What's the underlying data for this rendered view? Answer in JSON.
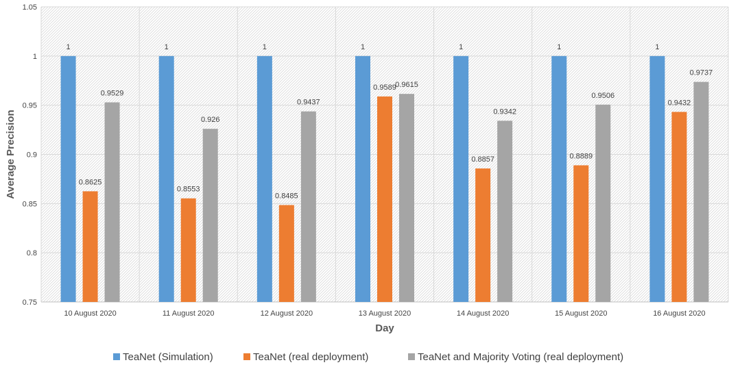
{
  "chart_data": {
    "type": "bar",
    "title": "",
    "xlabel": "Day",
    "ylabel": "Average Precision",
    "ylim": [
      0.75,
      1.05
    ],
    "yticks": [
      "0.75",
      "0.8",
      "0.85",
      "0.9",
      "0.95",
      "1",
      "1.05"
    ],
    "grid": true,
    "legend_position": "bottom",
    "categories": [
      "10 August 2020",
      "11 August 2020",
      "12 August 2020",
      "13 August 2020",
      "14 August 2020",
      "15 August 2020",
      "16 August 2020"
    ],
    "series": [
      {
        "name": "TeaNet (Simulation)",
        "color": "#5B9BD5",
        "values": [
          1,
          1,
          1,
          1,
          1,
          1,
          1
        ],
        "labels": [
          "1",
          "1",
          "1",
          "1",
          "1",
          "1",
          "1"
        ]
      },
      {
        "name": "TeaNet (real deployment)",
        "color": "#ED7D31",
        "values": [
          0.8625,
          0.8553,
          0.8485,
          0.9589,
          0.8857,
          0.8889,
          0.9432
        ],
        "labels": [
          "0.8625",
          "0.8553",
          "0.8485",
          "0.9589",
          "0.8857",
          "0.8889",
          "0.9432"
        ]
      },
      {
        "name": "TeaNet and Majority Voting (real deployment)",
        "color": "#A5A5A5",
        "values": [
          0.9529,
          0.926,
          0.9437,
          0.9615,
          0.9342,
          0.9506,
          0.9737
        ],
        "labels": [
          "0.9529",
          "0.926",
          "0.9437",
          "0.9615",
          "0.9342",
          "0.9506",
          "0.9737"
        ]
      }
    ]
  }
}
